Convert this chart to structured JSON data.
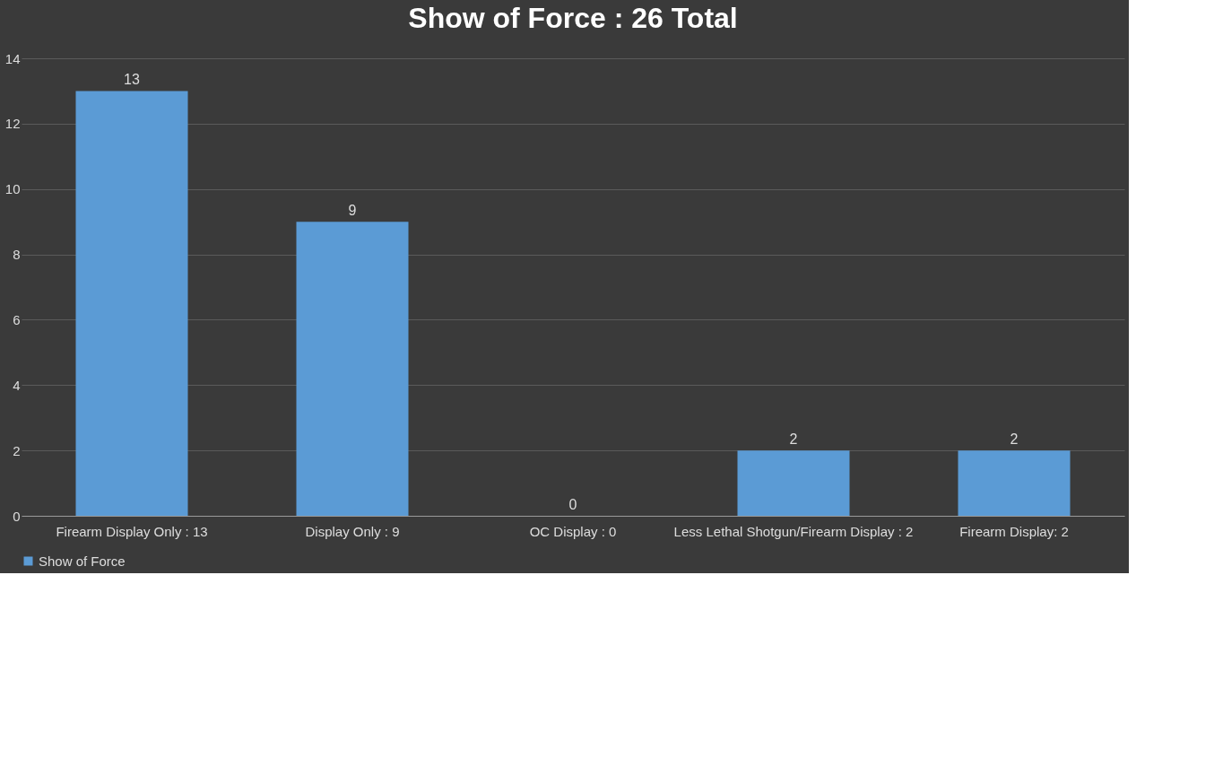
{
  "chart_data": {
    "type": "bar",
    "title": "Show of Force : 26 Total",
    "categories": [
      "Firearm Display Only : 13",
      "Display Only : 9",
      "OC Display : 0",
      "Less Lethal Shotgun/Firearm Display : 2",
      "Firearm Display: 2"
    ],
    "series": [
      {
        "name": "Show of Force",
        "color": "#5b9bd5",
        "values": [
          13,
          9,
          0,
          2,
          2
        ]
      }
    ],
    "ylim": [
      0,
      14
    ],
    "yticks": [
      0,
      2,
      4,
      6,
      8,
      10,
      12,
      14
    ],
    "grid": "y",
    "legend": "bottom",
    "data_labels": true
  }
}
